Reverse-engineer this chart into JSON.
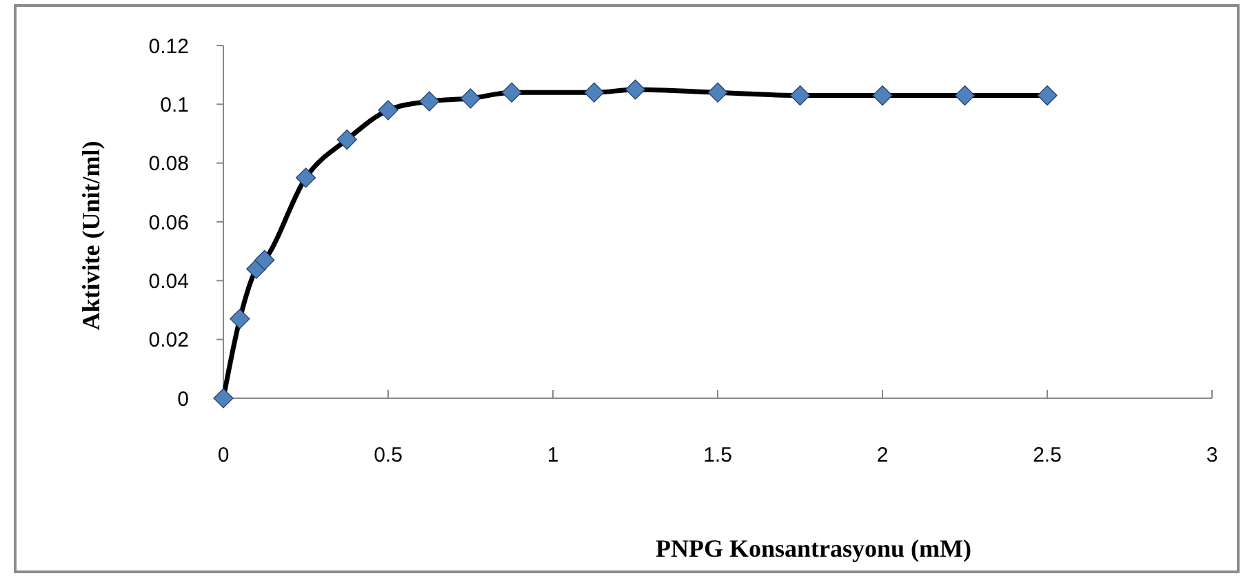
{
  "chart_data": {
    "type": "line",
    "xlabel": "PNPG Konsantrasyonu (mM)",
    "ylabel": "Aktivite (Unit/ml)",
    "x": [
      0,
      0.05,
      0.1,
      0.125,
      0.25,
      0.375,
      0.5,
      0.625,
      0.75,
      0.875,
      1.125,
      1.25,
      1.5,
      1.75,
      2,
      2.25,
      2.5
    ],
    "series": [
      {
        "color": "#000000",
        "values": [
          0,
          0.027,
          0.044,
          0.047,
          0.075,
          0.088,
          0.098,
          0.101,
          0.102,
          0.104,
          0.104,
          0.105,
          0.104,
          0.103,
          0.103,
          0.103,
          0.103
        ]
      }
    ],
    "marker": "diamond",
    "xlim": [
      0,
      3
    ],
    "xticks": [
      0,
      0.5,
      1,
      1.5,
      2,
      2.5,
      3
    ],
    "ylim": [
      0,
      0.12
    ],
    "yticks": [
      0,
      0.02,
      0.04,
      0.06,
      0.08,
      0.1,
      0.12
    ],
    "grid": false
  }
}
